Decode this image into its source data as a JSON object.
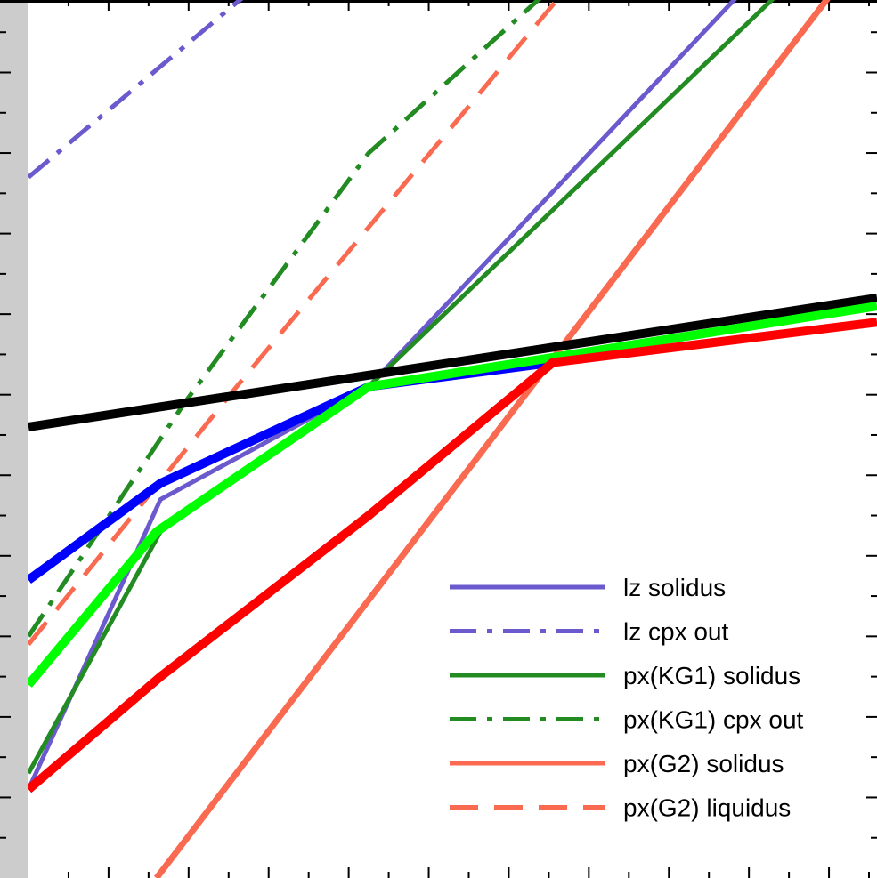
{
  "chart_data": {
    "type": "line",
    "title": "",
    "xlabel": "",
    "ylabel": "",
    "xlim": [
      0,
      10.6
    ],
    "ylim": [
      0,
      10.9
    ],
    "grid": false,
    "legend_placement": "bottom-right",
    "series": [
      {
        "name": "lz solidus",
        "legend": true,
        "color": "#6a5acd",
        "dash": "solid",
        "weight": "thin",
        "points": [
          [
            0,
            1.1
          ],
          [
            1.65,
            4.7
          ],
          [
            4.25,
            6.1
          ],
          [
            9.1,
            11.2
          ]
        ]
      },
      {
        "name": "lz cpx out",
        "legend": true,
        "color": "#6a5acd",
        "dash": "dashdot",
        "weight": "thin",
        "points": [
          [
            0,
            8.7
          ],
          [
            3.0,
            11.2
          ]
        ]
      },
      {
        "name": "px(KG1) solidus",
        "legend": true,
        "color": "#228b22",
        "dash": "solid",
        "weight": "thin",
        "points": [
          [
            0,
            1.3
          ],
          [
            1.65,
            4.3
          ],
          [
            4.25,
            6.1
          ],
          [
            9.6,
            11.2
          ]
        ]
      },
      {
        "name": "px(KG1) cpx out",
        "legend": true,
        "color": "#228b22",
        "dash": "dashdot",
        "weight": "thin",
        "points": [
          [
            0,
            3.0
          ],
          [
            1.95,
            5.9
          ],
          [
            4.25,
            9.0
          ],
          [
            6.7,
            11.2
          ]
        ]
      },
      {
        "name": "px(G2) solidus",
        "legend": true,
        "color": "#fa6a50",
        "dash": "solid",
        "weight": "medium",
        "points": [
          [
            1.6,
            0
          ],
          [
            10.2,
            11.2
          ]
        ]
      },
      {
        "name": "px(G2) liquidus",
        "legend": true,
        "color": "#fa6a50",
        "dash": "dashed",
        "weight": "thin",
        "points": [
          [
            0,
            2.9
          ],
          [
            2.6,
            6.1
          ],
          [
            6.85,
            11.2
          ]
        ]
      },
      {
        "name": "",
        "legend": false,
        "color": "#000000",
        "dash": "solid",
        "weight": "thick",
        "points": [
          [
            0,
            5.6
          ],
          [
            10.6,
            7.2
          ]
        ]
      },
      {
        "name": "",
        "legend": false,
        "color": "#0000ff",
        "dash": "solid",
        "weight": "thick",
        "points": [
          [
            0,
            3.7
          ],
          [
            1.65,
            4.9
          ],
          [
            4.25,
            6.1
          ],
          [
            6.55,
            6.4
          ]
        ]
      },
      {
        "name": "",
        "legend": false,
        "color": "#00ff00",
        "dash": "solid",
        "weight": "thick",
        "points": [
          [
            0,
            2.4
          ],
          [
            1.6,
            4.3
          ],
          [
            4.25,
            6.1
          ],
          [
            10.6,
            7.1
          ]
        ]
      },
      {
        "name": "",
        "legend": false,
        "color": "#ff0000",
        "dash": "solid",
        "weight": "thick",
        "points": [
          [
            0,
            1.1
          ],
          [
            1.65,
            2.5
          ],
          [
            4.25,
            4.5
          ],
          [
            6.55,
            6.4
          ],
          [
            10.6,
            6.9
          ]
        ]
      }
    ]
  }
}
